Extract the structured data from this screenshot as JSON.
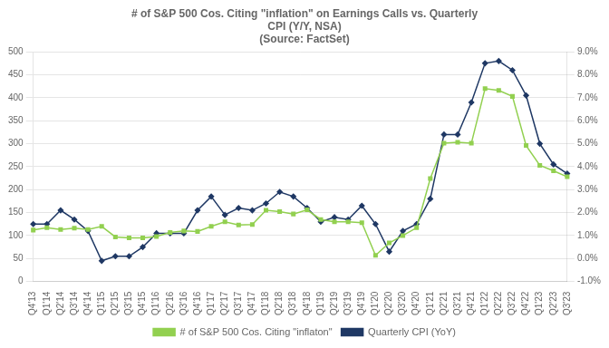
{
  "chart_data": {
    "type": "line",
    "title": [
      "# of S&P 500 Cos. Citing \"inflation\" on Earnings Calls vs. Quarterly",
      "CPI (Y/Y, NSA)",
      "(Source: FactSet)"
    ],
    "categories": [
      "Q4'13",
      "Q1'14",
      "Q2'14",
      "Q3'14",
      "Q4'14",
      "Q1'15",
      "Q2'15",
      "Q3'15",
      "Q4'15",
      "Q1'16",
      "Q2'16",
      "Q3'16",
      "Q4'16",
      "Q1'17",
      "Q2'17",
      "Q3'17",
      "Q4'17",
      "Q1'18",
      "Q2'18",
      "Q3'18",
      "Q4'18",
      "Q1'19",
      "Q2'19",
      "Q3'19",
      "Q4'19",
      "Q1'20",
      "Q2'20",
      "Q3'20",
      "Q4'20",
      "Q1'21",
      "Q2'21",
      "Q3'21",
      "Q4'21",
      "Q1'22",
      "Q2'22",
      "Q3'22",
      "Q4'22",
      "Q1'23",
      "Q2'23",
      "Q3'23"
    ],
    "series": [
      {
        "name": "# of S&P 500 Cos. Citing \"inflaton\"",
        "color": "#92d050",
        "marker": "square",
        "values": [
          112,
          117,
          113,
          116,
          113,
          120,
          97,
          95,
          95,
          98,
          107,
          110,
          109,
          120,
          130,
          123,
          124,
          155,
          152,
          147,
          156,
          135,
          130,
          130,
          128,
          57,
          84,
          100,
          117,
          224,
          301,
          303,
          301,
          420,
          416,
          403,
          296,
          253,
          241,
          228
        ]
      },
      {
        "name": "Quarterly CPI (YoY)",
        "color": "#1f3864",
        "marker": "diamond",
        "axis": "y2",
        "values": [
          1.5,
          1.5,
          2.1,
          1.7,
          1.2,
          -0.1,
          0.1,
          0.1,
          0.5,
          1.1,
          1.1,
          1.1,
          2.1,
          2.7,
          1.9,
          2.2,
          2.1,
          2.4,
          2.9,
          2.7,
          2.2,
          1.6,
          1.8,
          1.7,
          2.3,
          1.5,
          0.3,
          1.2,
          1.5,
          2.6,
          5.4,
          5.4,
          6.8,
          8.5,
          8.6,
          8.2,
          7.1,
          5.0,
          4.1,
          3.7
        ]
      }
    ],
    "ylim": [
      0,
      500
    ],
    "yticks": [
      0,
      50,
      100,
      150,
      200,
      250,
      300,
      350,
      400,
      450,
      500
    ],
    "y2lim": [
      -1.0,
      9.0
    ],
    "y2ticks": [
      {
        "value": -1.0,
        "label": "-1.0%"
      },
      {
        "value": 0.0,
        "label": "0.0%"
      },
      {
        "value": 1.0,
        "label": "1.0%"
      },
      {
        "value": 2.0,
        "label": "2.0%"
      },
      {
        "value": 3.0,
        "label": "3.0%"
      },
      {
        "value": 4.0,
        "label": "4.0%"
      },
      {
        "value": 5.0,
        "label": "5.0%"
      },
      {
        "value": 6.0,
        "label": "6.0%"
      },
      {
        "value": 7.0,
        "label": "7.0%"
      },
      {
        "value": 8.0,
        "label": "8.0%"
      },
      {
        "value": 9.0,
        "label": "9.0%"
      }
    ],
    "grid": true,
    "legend": "bottom"
  }
}
